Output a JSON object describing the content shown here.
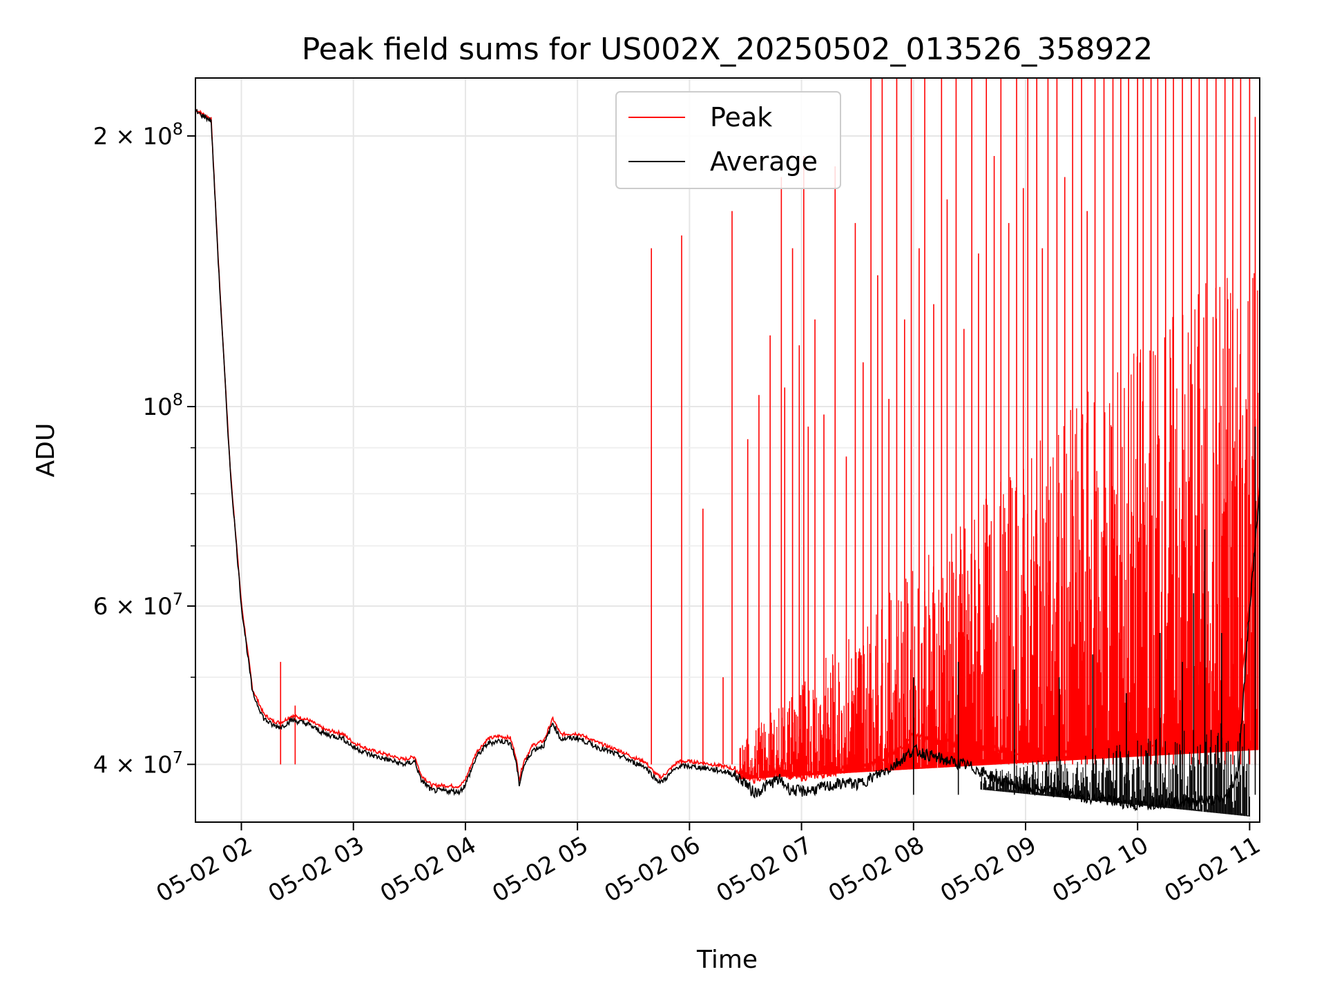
{
  "chart_data": {
    "type": "line",
    "title": "Peak field sums for US002X_20250502_013526_358922",
    "xlabel": "Time",
    "ylabel": "ADU",
    "x_unit": "hour of 2025-05-02",
    "xlim": [
      1.59,
      11.09
    ],
    "ylim": [
      34500000,
      232000000
    ],
    "yscale": "log",
    "grid": true,
    "legend_loc": "upper center",
    "x_ticks": [
      {
        "value": 2,
        "label": "05-02 02"
      },
      {
        "value": 3,
        "label": "05-02 03"
      },
      {
        "value": 4,
        "label": "05-02 04"
      },
      {
        "value": 5,
        "label": "05-02 05"
      },
      {
        "value": 6,
        "label": "05-02 06"
      },
      {
        "value": 7,
        "label": "05-02 07"
      },
      {
        "value": 8,
        "label": "05-02 08"
      },
      {
        "value": 9,
        "label": "05-02 09"
      },
      {
        "value": 10,
        "label": "05-02 10"
      },
      {
        "value": 11,
        "label": "05-02 11"
      }
    ],
    "y_ticks": [
      {
        "value": 40000000,
        "base": "4 × 10",
        "exp": "7"
      },
      {
        "value": 60000000,
        "base": "6 × 10",
        "exp": "7"
      },
      {
        "value": 100000000,
        "base": "10",
        "exp": "8"
      },
      {
        "value": 200000000,
        "base": "2 × 10",
        "exp": "8"
      }
    ],
    "y_minor_ticks": [
      50000000,
      70000000,
      80000000,
      90000000
    ],
    "series": [
      {
        "name": "Average",
        "color": "#000000",
        "x": [
          1.59,
          1.73,
          1.8,
          1.9,
          2.0,
          2.1,
          2.2,
          2.28,
          2.35,
          2.45,
          2.55,
          2.6,
          2.75,
          2.9,
          3.0,
          3.15,
          3.3,
          3.45,
          3.55,
          3.6,
          3.7,
          3.8,
          3.95,
          4.0,
          4.1,
          4.2,
          4.3,
          4.4,
          4.45,
          4.48,
          4.52,
          4.6,
          4.7,
          4.78,
          4.85,
          5.0,
          5.2,
          5.4,
          5.5,
          5.6,
          5.7,
          5.75,
          5.9,
          6.0,
          6.15,
          6.35,
          6.5,
          6.55,
          6.6,
          6.7,
          6.8,
          6.9,
          7.0,
          7.2,
          7.4,
          7.5,
          7.6,
          7.8,
          8.0,
          8.2,
          8.5,
          8.8,
          9.0,
          9.3,
          9.6,
          9.8,
          10.0,
          10.2,
          10.5,
          10.7,
          10.8,
          10.9,
          11.0,
          11.09
        ],
        "y": [
          213000000,
          208000000,
          140000000,
          85000000,
          60000000,
          48000000,
          45000000,
          44200000,
          44000000,
          44800000,
          44500000,
          44300000,
          43200000,
          42800000,
          41800000,
          41000000,
          40500000,
          40000000,
          40300000,
          38500000,
          37400000,
          37400000,
          37300000,
          38000000,
          40800000,
          42200000,
          42500000,
          42300000,
          40400000,
          38000000,
          39800000,
          41500000,
          42000000,
          44500000,
          42700000,
          42800000,
          41700000,
          40800000,
          40200000,
          39800000,
          38500000,
          38200000,
          39800000,
          39800000,
          39600000,
          39200000,
          38200000,
          37400000,
          37200000,
          38000000,
          38500000,
          37500000,
          37300000,
          37700000,
          38200000,
          38000000,
          38500000,
          39700000,
          41500000,
          40700000,
          39800000,
          38300000,
          37600000,
          37200000,
          36700000,
          36400000,
          36000000,
          36300000,
          36400000,
          36500000,
          36700000,
          39500000,
          60000000,
          80000000
        ]
      },
      {
        "name": "Peak",
        "color": "#ff0000",
        "x": [
          1.59,
          1.73,
          1.8,
          1.9,
          2.0,
          2.1,
          2.2,
          2.28,
          2.35,
          2.45,
          2.55,
          2.6,
          2.75,
          2.9,
          3.0,
          3.15,
          3.3,
          3.45,
          3.55,
          3.6,
          3.7,
          3.8,
          3.95,
          4.0,
          4.1,
          4.2,
          4.3,
          4.4,
          4.45,
          4.48,
          4.52,
          4.6,
          4.7,
          4.78,
          4.85,
          5.0,
          5.2,
          5.4,
          5.5,
          5.6,
          5.7,
          5.75,
          5.9,
          6.0,
          6.15,
          6.35,
          6.5,
          6.55,
          6.6,
          6.7,
          6.8,
          6.9,
          7.0,
          7.2,
          7.4,
          7.5,
          7.6,
          7.8,
          8.0,
          8.2,
          8.5,
          8.8,
          9.0,
          9.3,
          9.6,
          9.8,
          10.0,
          10.2,
          10.5,
          10.7,
          10.8,
          10.9,
          11.0,
          11.09
        ],
        "y": [
          214000000,
          209000000,
          141000000,
          85500000,
          60500000,
          48500000,
          45500000,
          44700000,
          44500000,
          45300000,
          45000000,
          44800000,
          43700000,
          43300000,
          42300000,
          41500000,
          41000000,
          40500000,
          40800000,
          39000000,
          37900000,
          37900000,
          37800000,
          38500000,
          41300000,
          42700000,
          43000000,
          42800000,
          40900000,
          38500000,
          40300000,
          42000000,
          42500000,
          45000000,
          43200000,
          43300000,
          42200000,
          41300000,
          40700000,
          40300000,
          39000000,
          38700000,
          40300000,
          40300000,
          40100000,
          39700000,
          39000000,
          38500000,
          38400000,
          39000000,
          39500000,
          38800000,
          38700000,
          39000000,
          39500000,
          39500000,
          40000000,
          41000000,
          43000000,
          42500000,
          42000000,
          41500000,
          41000000,
          41000000,
          41000000,
          41000000,
          42000000,
          42000000,
          42000000,
          42000000,
          42000000,
          45000000,
          62000000,
          82000000
        ],
        "spikes": [
          [
            2.35,
            52000000
          ],
          [
            2.48,
            46500000
          ],
          [
            5.66,
            150000000
          ],
          [
            5.93,
            155000000
          ],
          [
            6.12,
            77000000
          ],
          [
            6.3,
            50000000
          ],
          [
            6.38,
            165000000
          ],
          [
            6.52,
            92000000
          ],
          [
            6.62,
            103000000
          ],
          [
            6.72,
            120000000
          ],
          [
            6.82,
            180000000
          ],
          [
            6.85,
            105000000
          ],
          [
            6.92,
            150000000
          ],
          [
            6.98,
            117000000
          ],
          [
            7.02,
            190000000
          ],
          [
            7.06,
            95000000
          ],
          [
            7.12,
            125000000
          ],
          [
            7.2,
            98000000
          ],
          [
            7.3,
            185000000
          ],
          [
            7.4,
            88000000
          ],
          [
            7.48,
            160000000
          ],
          [
            7.55,
            112000000
          ],
          [
            7.62,
            232000000
          ],
          [
            7.68,
            140000000
          ],
          [
            7.72,
            232000000
          ],
          [
            7.78,
            102000000
          ],
          [
            7.85,
            232000000
          ],
          [
            7.92,
            125000000
          ],
          [
            7.98,
            232000000
          ],
          [
            8.05,
            150000000
          ],
          [
            8.1,
            232000000
          ],
          [
            8.18,
            130000000
          ],
          [
            8.25,
            232000000
          ],
          [
            8.3,
            170000000
          ],
          [
            8.38,
            232000000
          ],
          [
            8.45,
            122000000
          ],
          [
            8.52,
            232000000
          ],
          [
            8.58,
            148000000
          ],
          [
            8.65,
            232000000
          ],
          [
            8.72,
            190000000
          ],
          [
            8.78,
            232000000
          ],
          [
            8.85,
            160000000
          ],
          [
            8.92,
            232000000
          ],
          [
            8.98,
            175000000
          ],
          [
            9.02,
            232000000
          ],
          [
            9.1,
            232000000
          ],
          [
            9.15,
            150000000
          ],
          [
            9.2,
            232000000
          ],
          [
            9.28,
            232000000
          ],
          [
            9.35,
            180000000
          ],
          [
            9.42,
            232000000
          ],
          [
            9.5,
            232000000
          ],
          [
            9.55,
            165000000
          ],
          [
            9.62,
            232000000
          ],
          [
            9.7,
            232000000
          ],
          [
            9.78,
            232000000
          ],
          [
            9.85,
            232000000
          ],
          [
            9.92,
            232000000
          ],
          [
            10.0,
            232000000
          ],
          [
            10.05,
            232000000
          ],
          [
            10.12,
            232000000
          ],
          [
            10.18,
            232000000
          ],
          [
            10.25,
            232000000
          ],
          [
            10.32,
            232000000
          ],
          [
            10.4,
            232000000
          ],
          [
            10.48,
            232000000
          ],
          [
            10.55,
            232000000
          ],
          [
            10.62,
            232000000
          ],
          [
            10.7,
            232000000
          ],
          [
            10.78,
            232000000
          ],
          [
            10.85,
            232000000
          ],
          [
            10.92,
            232000000
          ],
          [
            11.0,
            232000000
          ],
          [
            11.05,
            210000000
          ]
        ],
        "average_spikes": [
          [
            8.0,
            50000000
          ],
          [
            8.4,
            52000000
          ],
          [
            8.9,
            51000000
          ],
          [
            9.3,
            50000000
          ],
          [
            9.6,
            53000000
          ],
          [
            9.9,
            48000000
          ],
          [
            10.2,
            56000000
          ],
          [
            10.4,
            52000000
          ],
          [
            10.5,
            62000000
          ],
          [
            10.6,
            73000000
          ],
          [
            10.75,
            56000000
          ],
          [
            11.05,
            95000000
          ]
        ]
      }
    ]
  },
  "legend": {
    "items": [
      {
        "name": "Peak",
        "color": "#ff0000"
      },
      {
        "name": "Average",
        "color": "#000000"
      }
    ]
  }
}
